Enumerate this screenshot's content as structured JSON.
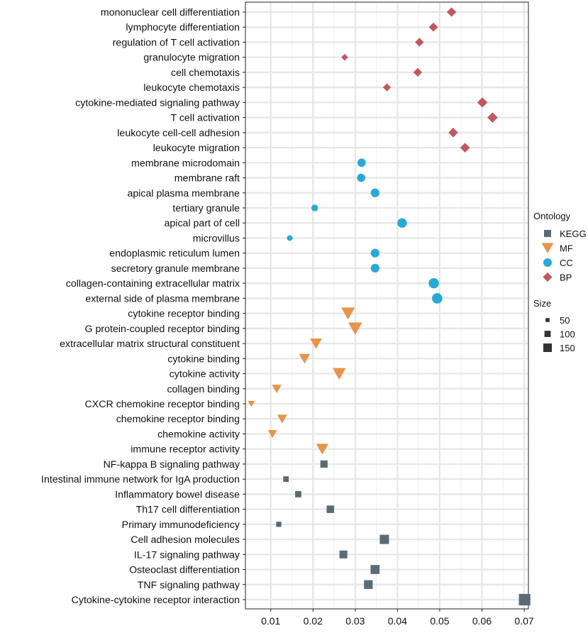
{
  "chart_data": {
    "type": "scatter",
    "title": "",
    "xlabel": "",
    "ylabel": "",
    "xlim": [
      0.004,
      0.071
    ],
    "x_ticks": [
      0.01,
      0.02,
      0.03,
      0.04,
      0.05,
      0.06,
      0.07
    ],
    "x_tick_labels": [
      "0.01",
      "0.02",
      "0.03",
      "0.04",
      "0.05",
      "0.06",
      "0.07"
    ],
    "grid": true,
    "legend": {
      "position": "right",
      "ontology_title": "Ontology",
      "ontology": [
        {
          "label": "KEGG",
          "shape": "square",
          "color": "#5a6b74"
        },
        {
          "label": "MF",
          "shape": "triangle-down",
          "color": "#e8944a"
        },
        {
          "label": "CC",
          "shape": "circle",
          "color": "#2aa8d8"
        },
        {
          "label": "BP",
          "shape": "diamond",
          "color": "#c0585e"
        }
      ],
      "size_title": "Size",
      "sizes": [
        {
          "label": "50",
          "value": 50
        },
        {
          "label": "100",
          "value": 100
        },
        {
          "label": "150",
          "value": 150
        }
      ]
    },
    "points": [
      {
        "term": "mononuclear cell differentiation",
        "x": 0.0528,
        "ontology": "BP",
        "size": 95
      },
      {
        "term": "lymphocyte differentiation",
        "x": 0.0485,
        "ontology": "BP",
        "size": 88
      },
      {
        "term": "regulation of T cell activation",
        "x": 0.0452,
        "ontology": "BP",
        "size": 82
      },
      {
        "term": "granulocyte migration",
        "x": 0.0275,
        "ontology": "BP",
        "size": 50
      },
      {
        "term": "cell chemotaxis",
        "x": 0.0448,
        "ontology": "BP",
        "size": 82
      },
      {
        "term": "leukocyte chemotaxis",
        "x": 0.0375,
        "ontology": "BP",
        "size": 68
      },
      {
        "term": "cytokine-mediated signaling pathway",
        "x": 0.0601,
        "ontology": "BP",
        "size": 110
      },
      {
        "term": "T cell activation",
        "x": 0.0625,
        "ontology": "BP",
        "size": 114
      },
      {
        "term": "leukocyte cell-cell adhesion",
        "x": 0.0532,
        "ontology": "BP",
        "size": 97
      },
      {
        "term": "leukocyte migration",
        "x": 0.056,
        "ontology": "BP",
        "size": 102
      },
      {
        "term": "membrane microdomain",
        "x": 0.0315,
        "ontology": "CC",
        "size": 90
      },
      {
        "term": "membrane raft",
        "x": 0.0314,
        "ontology": "CC",
        "size": 88
      },
      {
        "term": "apical plasma membrane",
        "x": 0.0347,
        "ontology": "CC",
        "size": 98
      },
      {
        "term": "tertiary granule",
        "x": 0.0204,
        "ontology": "CC",
        "size": 58
      },
      {
        "term": "apical part of cell",
        "x": 0.0411,
        "ontology": "CC",
        "size": 116
      },
      {
        "term": "microvillus",
        "x": 0.0145,
        "ontology": "CC",
        "size": 42
      },
      {
        "term": "endoplasmic reticulum lumen",
        "x": 0.0347,
        "ontology": "CC",
        "size": 98
      },
      {
        "term": "secretory granule membrane",
        "x": 0.0347,
        "ontology": "CC",
        "size": 98
      },
      {
        "term": "collagen-containing extracellular matrix",
        "x": 0.0486,
        "ontology": "CC",
        "size": 138
      },
      {
        "term": "external side of plasma membrane",
        "x": 0.0494,
        "ontology": "CC",
        "size": 140
      },
      {
        "term": "cytokine receptor binding",
        "x": 0.0283,
        "ontology": "MF",
        "size": 130
      },
      {
        "term": "G protein-coupled receptor binding",
        "x": 0.03,
        "ontology": "MF",
        "size": 135
      },
      {
        "term": "extracellular matrix structural constituent",
        "x": 0.0207,
        "ontology": "MF",
        "size": 94
      },
      {
        "term": "cytokine binding",
        "x": 0.018,
        "ontology": "MF",
        "size": 80
      },
      {
        "term": "cytokine activity",
        "x": 0.0262,
        "ontology": "MF",
        "size": 118
      },
      {
        "term": "collagen binding",
        "x": 0.0114,
        "ontology": "MF",
        "size": 58
      },
      {
        "term": "CXCR chemokine receptor binding",
        "x": 0.0054,
        "ontology": "MF",
        "size": 28
      },
      {
        "term": "chemokine receptor binding",
        "x": 0.0127,
        "ontology": "MF",
        "size": 62
      },
      {
        "term": "chemokine activity",
        "x": 0.0104,
        "ontology": "MF",
        "size": 52
      },
      {
        "term": "immune receptor activity",
        "x": 0.0222,
        "ontology": "MF",
        "size": 100
      },
      {
        "term": "NF-kappa B signaling pathway",
        "x": 0.0226,
        "ontology": "KEGG",
        "size": 68
      },
      {
        "term": "Intestinal immune network for IgA production",
        "x": 0.0136,
        "ontology": "KEGG",
        "size": 40
      },
      {
        "term": "Inflammatory bowel disease",
        "x": 0.0165,
        "ontology": "KEGG",
        "size": 50
      },
      {
        "term": "Th17 cell differentiation",
        "x": 0.0241,
        "ontology": "KEGG",
        "size": 72
      },
      {
        "term": "Primary immunodeficiency",
        "x": 0.0119,
        "ontology": "KEGG",
        "size": 35
      },
      {
        "term": "Cell adhesion molecules",
        "x": 0.0369,
        "ontology": "KEGG",
        "size": 110
      },
      {
        "term": "IL-17 signaling pathway",
        "x": 0.0272,
        "ontology": "KEGG",
        "size": 80
      },
      {
        "term": "Osteoclast differentiation",
        "x": 0.0347,
        "ontology": "KEGG",
        "size": 104
      },
      {
        "term": "TNF signaling pathway",
        "x": 0.0331,
        "ontology": "KEGG",
        "size": 98
      },
      {
        "term": "Cytokine-cytokine receptor interaction",
        "x": 0.0701,
        "ontology": "KEGG",
        "size": 170
      }
    ]
  }
}
